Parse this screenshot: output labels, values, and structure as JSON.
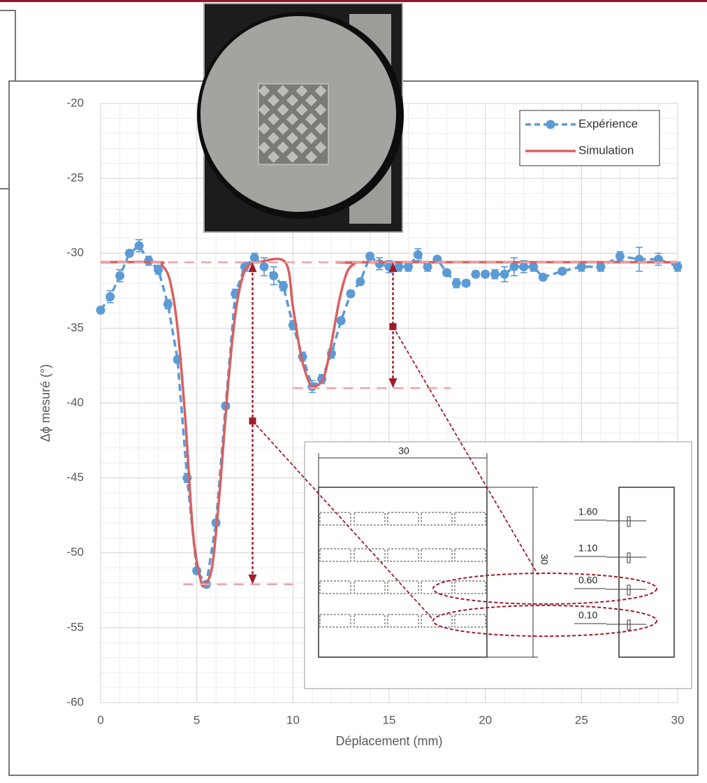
{
  "chart_data": {
    "type": "line",
    "x_label": "Déplacement (mm)",
    "y_label": "Δϕ mesuré (°)",
    "xlim": [
      0,
      30
    ],
    "ylim": [
      -60,
      -20
    ],
    "xticks": [
      0,
      5,
      10,
      15,
      20,
      25,
      30
    ],
    "yticks": [
      -20,
      -25,
      -30,
      -35,
      -40,
      -45,
      -50,
      -55,
      -60
    ],
    "grid": true,
    "legend": "upper right",
    "series": [
      {
        "name": "Expérience",
        "color": "#5b9bd5",
        "style": "dashed",
        "x": [
          0,
          0.5,
          1,
          1.5,
          2,
          2.5,
          3,
          3.5,
          4,
          4.5,
          5,
          5.5,
          6,
          6.5,
          7,
          7.5,
          8,
          8.5,
          9,
          9.5,
          10,
          10.5,
          11,
          11.5,
          12,
          12.5,
          13,
          13.5,
          14,
          14.5,
          15,
          15.5,
          16,
          16.5,
          17,
          17.5,
          18,
          18.5,
          19,
          19.5,
          20,
          20.5,
          21,
          21.5,
          22,
          22.5,
          23,
          24,
          25,
          26,
          27,
          28,
          29,
          30
        ],
        "values": [
          -33.8,
          -32.9,
          -31.5,
          -30.0,
          -29.5,
          -30.5,
          -31.1,
          -33.4,
          -37.1,
          -45.0,
          -51.2,
          -52.1,
          -48.0,
          -40.2,
          -32.7,
          -30.9,
          -30.3,
          -30.9,
          -31.5,
          -32.2,
          -34.8,
          -36.9,
          -38.9,
          -38.4,
          -36.7,
          -34.5,
          -32.7,
          -31.9,
          -30.2,
          -30.7,
          -30.9,
          -30.9,
          -30.9,
          -30.1,
          -30.9,
          -30.4,
          -31.3,
          -32.0,
          -32.0,
          -31.4,
          -31.4,
          -31.4,
          -31.4,
          -30.9,
          -30.9,
          -30.9,
          -31.6,
          -31.2,
          -30.9,
          -30.9,
          -30.2,
          -30.4,
          -30.4,
          -30.9
        ],
        "errors": [
          0.2,
          0.4,
          0.4,
          0.2,
          0.4,
          0.3,
          0.3,
          0.3,
          0.2,
          0.3,
          0.2,
          0.2,
          0.2,
          0.2,
          0.3,
          0.3,
          0.3,
          0.6,
          0.6,
          0.3,
          0.3,
          0.3,
          0.4,
          0.3,
          0.3,
          0.2,
          0.2,
          0.2,
          0.2,
          0.4,
          0.4,
          0.3,
          0.3,
          0.4,
          0.3,
          0.2,
          0.2,
          0.3,
          0.2,
          0.2,
          0.2,
          0.3,
          0.5,
          0.6,
          0.4,
          0.3,
          0.2,
          0.2,
          0.3,
          0.3,
          0.3,
          0.8,
          0.4,
          0.3
        ]
      },
      {
        "name": "Simulation",
        "color": "#d9605f",
        "style": "solid",
        "x": [
          0,
          3,
          3.2,
          3.6,
          4,
          4.4,
          4.8,
          5.2,
          5.4,
          5.8,
          6.2,
          6.6,
          7,
          7.4,
          7.8,
          8.2,
          9.6,
          10,
          10.4,
          10.8,
          11.1,
          11.6,
          12,
          12.4,
          12.8,
          13.2,
          13.6,
          30
        ],
        "values": [
          -30.6,
          -30.6,
          -30.8,
          -31.8,
          -35,
          -41,
          -48.6,
          -51.8,
          -52.1,
          -50.9,
          -45.8,
          -39.2,
          -34.1,
          -31.5,
          -30.7,
          -30.6,
          -30.6,
          -33.6,
          -36.7,
          -38.5,
          -38.9,
          -38.3,
          -36,
          -33.2,
          -31.3,
          -30.7,
          -30.6,
          -30.6
        ]
      }
    ],
    "reference_lines": [
      {
        "y": -30.6,
        "x": [
          0,
          30
        ]
      },
      {
        "y": -39,
        "x": [
          10,
          18.2
        ]
      },
      {
        "y": -52.1,
        "x": [
          4.3,
          10
        ]
      }
    ],
    "arrows": [
      {
        "x": 7.9,
        "y": [
          -30.6,
          -52.1
        ],
        "mid": -41.2
      },
      {
        "x": 15.2,
        "y": [
          -30.6,
          -39
        ],
        "mid": -34.9
      }
    ]
  },
  "inset_drawing": {
    "width_label": "30",
    "height_label": "30",
    "depth_labels": [
      "1.60",
      "1.10",
      "0.60",
      "0.10"
    ]
  }
}
